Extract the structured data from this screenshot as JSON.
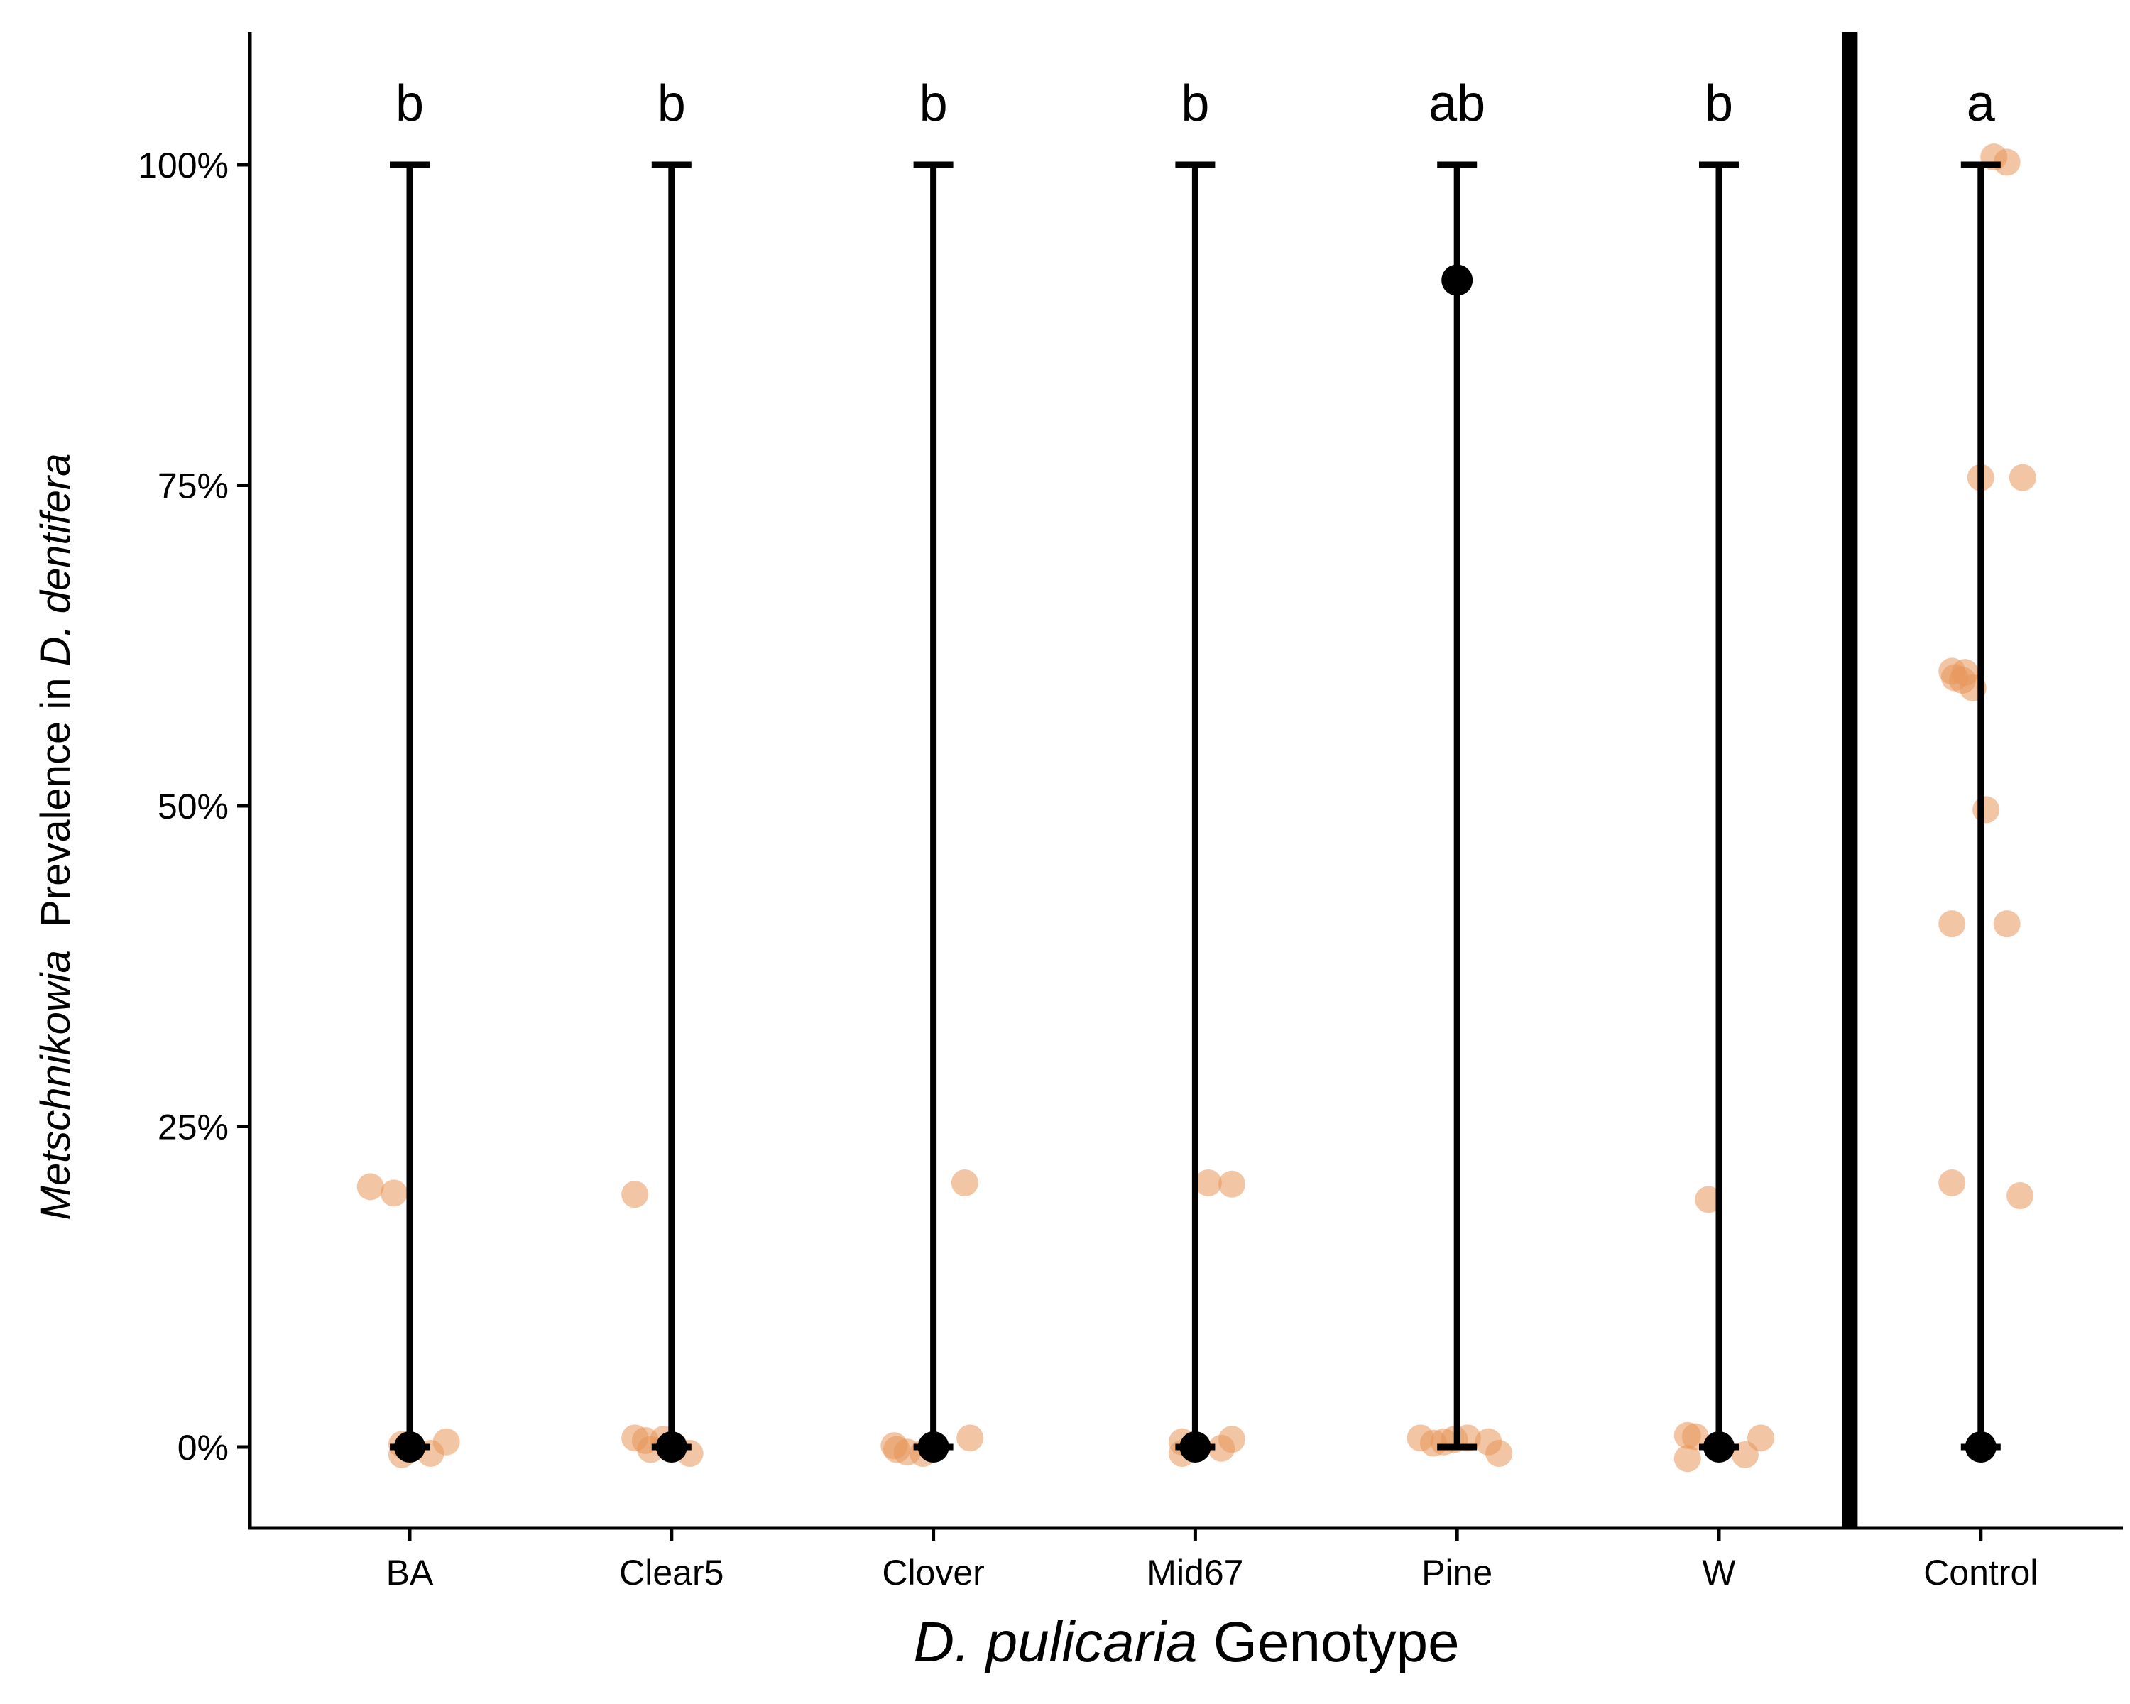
{
  "chart_data": {
    "type": "scatter",
    "xlabel": {
      "italic": "D. pulicaria",
      "rest": " Genotype"
    },
    "ylabel": {
      "italic1": "Metschnikowia",
      "middle": "  Prevalence in ",
      "italic2": "D. dentifera"
    },
    "categories": [
      "BA",
      "Clear5",
      "Clover",
      "Mid67",
      "Pine",
      "W",
      "Control"
    ],
    "y_ticks": [
      0,
      25,
      50,
      75,
      100
    ],
    "y_tick_labels": [
      "0%",
      "25%",
      "50%",
      "75%",
      "100%"
    ],
    "ylim": [
      -6,
      111
    ],
    "grid": false,
    "separator_after_category": "W",
    "summary": [
      {
        "category": "BA",
        "mean": 0,
        "lower": 0,
        "upper": 100,
        "letter": "b"
      },
      {
        "category": "Clear5",
        "mean": 0,
        "lower": 0,
        "upper": 100,
        "letter": "b"
      },
      {
        "category": "Clover",
        "mean": 0,
        "lower": 0,
        "upper": 100,
        "letter": "b"
      },
      {
        "category": "Mid67",
        "mean": 0,
        "lower": 0,
        "upper": 100,
        "letter": "b"
      },
      {
        "category": "Pine",
        "mean": 91,
        "lower": 0,
        "upper": 100,
        "letter": "ab"
      },
      {
        "category": "W",
        "mean": 0,
        "lower": 0,
        "upper": 100,
        "letter": "b"
      },
      {
        "category": "Control",
        "mean": 0,
        "lower": 0,
        "upper": 100,
        "letter": "a"
      }
    ],
    "points": [
      {
        "category": "BA",
        "offset": -0.15,
        "y": 20.3
      },
      {
        "category": "BA",
        "offset": -0.06,
        "y": 19.8
      },
      {
        "category": "BA",
        "offset": -0.03,
        "y": 0.2
      },
      {
        "category": "BA",
        "offset": -0.03,
        "y": -0.6
      },
      {
        "category": "BA",
        "offset": 0.08,
        "y": -0.5
      },
      {
        "category": "BA",
        "offset": 0.14,
        "y": 0.4
      },
      {
        "category": "BA",
        "offset": 0.01,
        "y": 0.0
      },
      {
        "category": "Clear5",
        "offset": -0.14,
        "y": 19.7
      },
      {
        "category": "Clear5",
        "offset": -0.14,
        "y": 0.7
      },
      {
        "category": "Clear5",
        "offset": -0.1,
        "y": 0.5
      },
      {
        "category": "Clear5",
        "offset": -0.08,
        "y": -0.2
      },
      {
        "category": "Clear5",
        "offset": -0.03,
        "y": 0.6
      },
      {
        "category": "Clear5",
        "offset": 0.01,
        "y": 0.1
      },
      {
        "category": "Clear5",
        "offset": 0.07,
        "y": -0.5
      },
      {
        "category": "Clover",
        "offset": 0.12,
        "y": 20.6
      },
      {
        "category": "Clover",
        "offset": -0.15,
        "y": 0.1
      },
      {
        "category": "Clover",
        "offset": -0.14,
        "y": -0.2
      },
      {
        "category": "Clover",
        "offset": -0.1,
        "y": -0.4
      },
      {
        "category": "Clover",
        "offset": -0.04,
        "y": -0.5
      },
      {
        "category": "Clover",
        "offset": 0.01,
        "y": 0.0
      },
      {
        "category": "Clover",
        "offset": 0.14,
        "y": 0.7
      },
      {
        "category": "Mid67",
        "offset": 0.05,
        "y": 20.6
      },
      {
        "category": "Mid67",
        "offset": 0.14,
        "y": 20.5
      },
      {
        "category": "Mid67",
        "offset": -0.05,
        "y": 0.4
      },
      {
        "category": "Mid67",
        "offset": -0.05,
        "y": -0.5
      },
      {
        "category": "Mid67",
        "offset": 0.1,
        "y": -0.1
      },
      {
        "category": "Mid67",
        "offset": 0.14,
        "y": 0.6
      },
      {
        "category": "Mid67",
        "offset": 0.01,
        "y": 0.0
      },
      {
        "category": "Pine",
        "offset": -0.14,
        "y": 0.7
      },
      {
        "category": "Pine",
        "offset": -0.09,
        "y": 0.3
      },
      {
        "category": "Pine",
        "offset": -0.05,
        "y": 0.4
      },
      {
        "category": "Pine",
        "offset": -0.01,
        "y": 0.6
      },
      {
        "category": "Pine",
        "offset": 0.04,
        "y": 0.7
      },
      {
        "category": "Pine",
        "offset": 0.12,
        "y": 0.4
      },
      {
        "category": "Pine",
        "offset": 0.16,
        "y": -0.5
      },
      {
        "category": "W",
        "offset": -0.04,
        "y": 19.3
      },
      {
        "category": "W",
        "offset": -0.12,
        "y": 0.9
      },
      {
        "category": "W",
        "offset": -0.09,
        "y": 0.8
      },
      {
        "category": "W",
        "offset": -0.12,
        "y": -0.9
      },
      {
        "category": "W",
        "offset": 0.1,
        "y": -0.6
      },
      {
        "category": "W",
        "offset": 0.16,
        "y": 0.7
      },
      {
        "category": "W",
        "offset": 0.01,
        "y": 0.0
      },
      {
        "category": "Control",
        "offset": 0.05,
        "y": 100.6
      },
      {
        "category": "Control",
        "offset": 0.1,
        "y": 100.2
      },
      {
        "category": "Control",
        "offset": 0.0,
        "y": 75.6
      },
      {
        "category": "Control",
        "offset": 0.16,
        "y": 75.6
      },
      {
        "category": "Control",
        "offset": -0.11,
        "y": 60.5
      },
      {
        "category": "Control",
        "offset": -0.1,
        "y": 60.0
      },
      {
        "category": "Control",
        "offset": -0.07,
        "y": 59.8
      },
      {
        "category": "Control",
        "offset": -0.06,
        "y": 60.4
      },
      {
        "category": "Control",
        "offset": -0.03,
        "y": 59.2
      },
      {
        "category": "Control",
        "offset": 0.02,
        "y": 49.7
      },
      {
        "category": "Control",
        "offset": -0.11,
        "y": 40.8
      },
      {
        "category": "Control",
        "offset": 0.1,
        "y": 40.8
      },
      {
        "category": "Control",
        "offset": -0.11,
        "y": 20.6
      },
      {
        "category": "Control",
        "offset": 0.15,
        "y": 19.6
      }
    ],
    "colors": {
      "points": "#e8955a",
      "summary": "#000000",
      "axes": "#000000"
    }
  }
}
